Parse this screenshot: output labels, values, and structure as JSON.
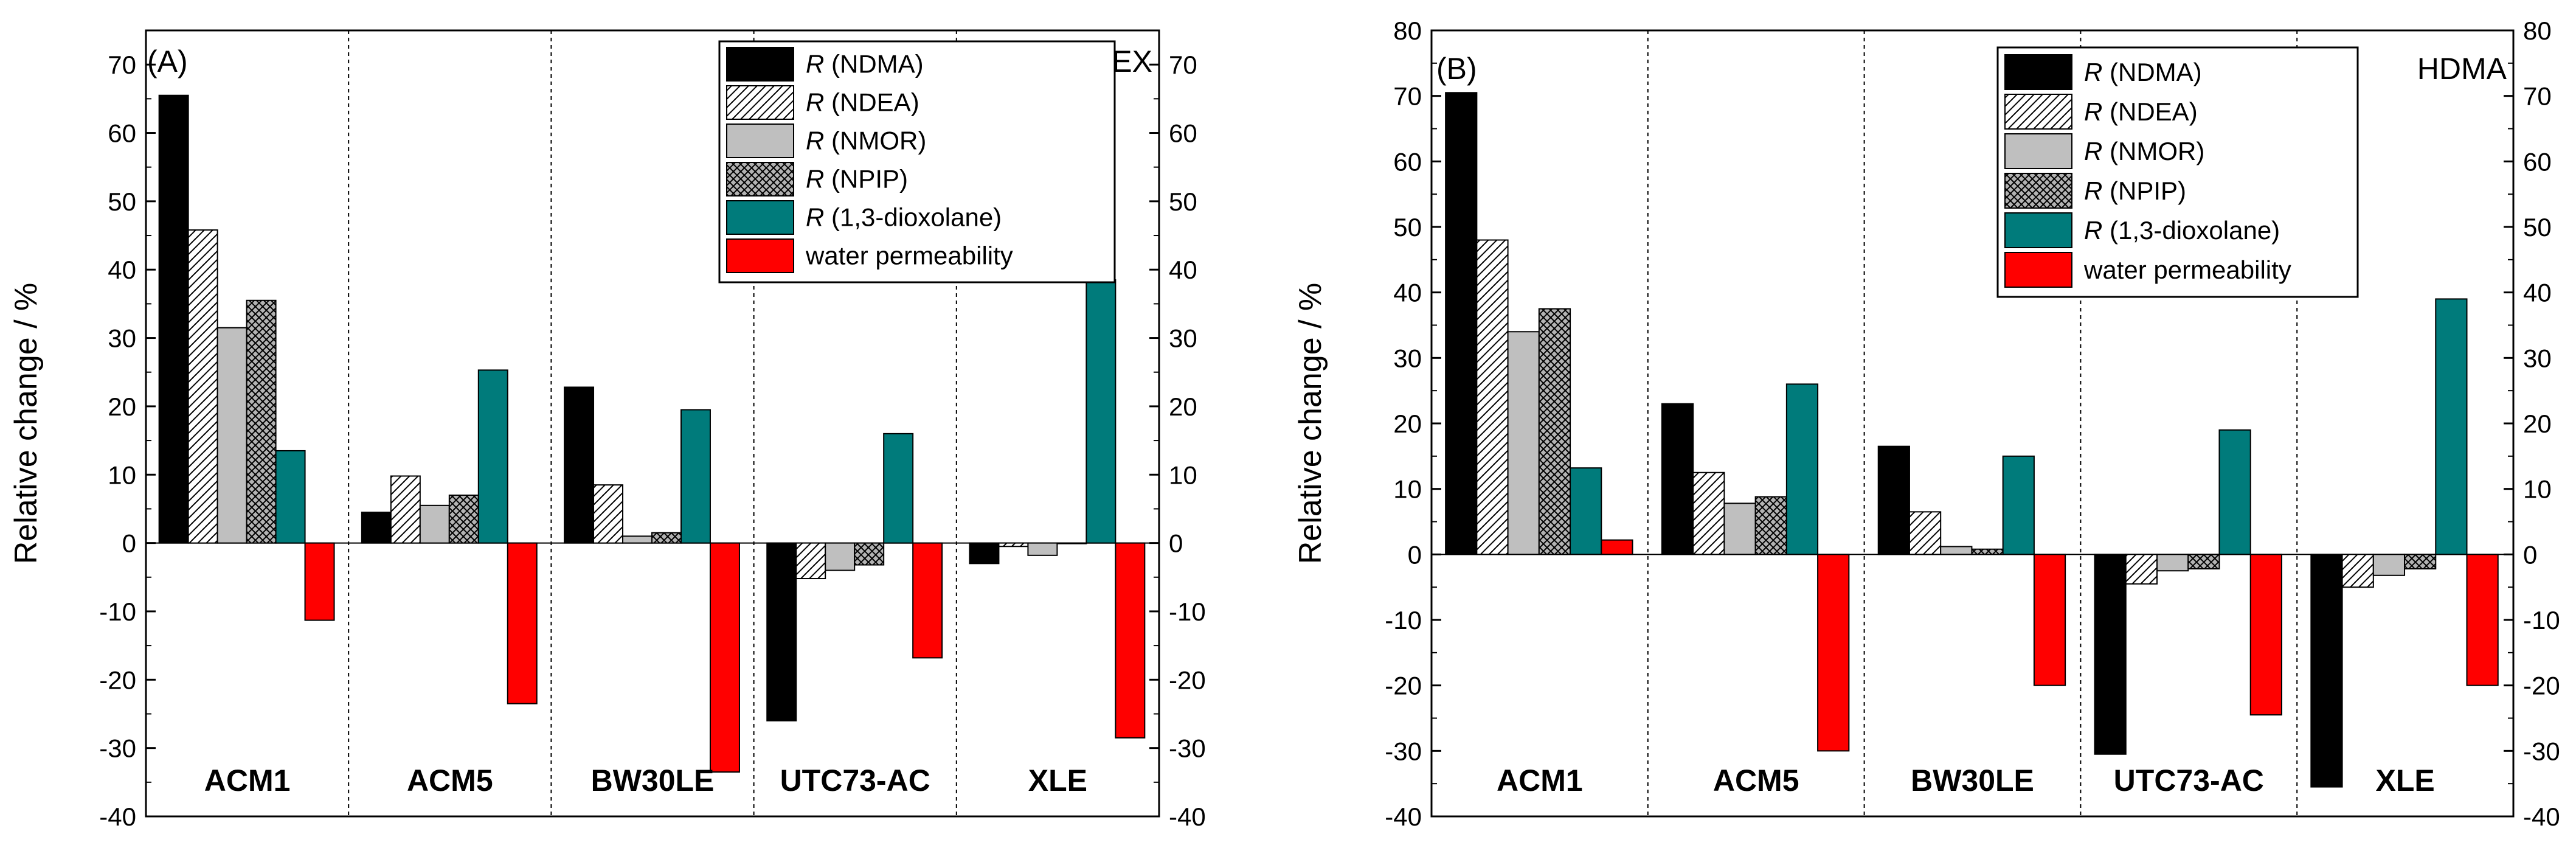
{
  "chart_data": [
    {
      "type": "bar",
      "panel_label": "(A)",
      "title": "HEX",
      "ylabel": "Relative change / %",
      "xlabel": "",
      "ylim": [
        -40,
        75
      ],
      "yticks": [
        -40,
        -30,
        -20,
        -10,
        0,
        10,
        20,
        30,
        40,
        50,
        60,
        70
      ],
      "categories": [
        "ACM1",
        "ACM5",
        "BW30LE",
        "UTC73-AC",
        "XLE"
      ],
      "series": [
        {
          "name": "R (NDMA)",
          "name_prefix": "R",
          "name_suffix": " (NDMA)",
          "style": "solid",
          "color": "#000000",
          "values": [
            65.5,
            4.5,
            22.8,
            -26.0,
            -3.0
          ]
        },
        {
          "name": "R (NDEA)",
          "name_prefix": "R",
          "name_suffix": " (NDEA)",
          "style": "hatch",
          "color": "#ffffff",
          "values": [
            45.8,
            9.8,
            8.5,
            -5.2,
            -0.5
          ]
        },
        {
          "name": "R (NMOR)",
          "name_prefix": "R",
          "name_suffix": " (NMOR)",
          "style": "solid",
          "color": "#bfbfbf",
          "values": [
            31.5,
            5.5,
            1.0,
            -4.0,
            -1.8
          ]
        },
        {
          "name": "R (NPIP)",
          "name_prefix": "R",
          "name_suffix": " (NPIP)",
          "style": "cross",
          "color": "#999999",
          "values": [
            35.5,
            7.0,
            1.5,
            -3.2,
            0.0
          ]
        },
        {
          "name": "R (1,3-dioxolane)",
          "name_prefix": "R",
          "name_suffix": " (1,3-dioxolane)",
          "style": "solid",
          "color": "#007b7b",
          "values": [
            13.5,
            25.3,
            19.5,
            16.0,
            38.5
          ]
        },
        {
          "name": "water permeability",
          "name_prefix": "",
          "name_suffix": "water permeability",
          "style": "solid",
          "color": "#ff0000",
          "values": [
            -11.3,
            -23.5,
            -33.5,
            -16.8,
            -28.5
          ]
        }
      ]
    },
    {
      "type": "bar",
      "panel_label": "(B)",
      "title": "HDMA",
      "ylabel": "Relative change / %",
      "xlabel": "",
      "ylim": [
        -40,
        80
      ],
      "yticks": [
        -40,
        -30,
        -20,
        -10,
        0,
        10,
        20,
        30,
        40,
        50,
        60,
        70,
        80
      ],
      "categories": [
        "ACM1",
        "ACM5",
        "BW30LE",
        "UTC73-AC",
        "XLE"
      ],
      "series": [
        {
          "name": "R (NDMA)",
          "name_prefix": "R",
          "name_suffix": " (NDMA)",
          "style": "solid",
          "color": "#000000",
          "values": [
            70.5,
            23.0,
            16.5,
            -30.5,
            -35.5
          ]
        },
        {
          "name": "R (NDEA)",
          "name_prefix": "R",
          "name_suffix": " (NDEA)",
          "style": "hatch",
          "color": "#ffffff",
          "values": [
            48.0,
            12.5,
            6.5,
            -4.5,
            -5.0
          ]
        },
        {
          "name": "R (NMOR)",
          "name_prefix": "R",
          "name_suffix": " (NMOR)",
          "style": "solid",
          "color": "#bfbfbf",
          "values": [
            34.0,
            7.8,
            1.2,
            -2.5,
            -3.2
          ]
        },
        {
          "name": "R (NPIP)",
          "name_prefix": "R",
          "name_suffix": " (NPIP)",
          "style": "cross",
          "color": "#999999",
          "values": [
            37.5,
            8.8,
            0.8,
            -2.2,
            -2.2
          ]
        },
        {
          "name": "R (1,3-dioxolane)",
          "name_prefix": "R",
          "name_suffix": " (1,3-dioxolane)",
          "style": "solid",
          "color": "#007b7b",
          "values": [
            13.2,
            26.0,
            15.0,
            19.0,
            39.0
          ]
        },
        {
          "name": "water permeability",
          "name_prefix": "",
          "name_suffix": "water permeability",
          "style": "solid",
          "color": "#ff0000",
          "values": [
            2.2,
            -30.0,
            -20.0,
            -24.5,
            -20.0
          ]
        }
      ]
    }
  ]
}
